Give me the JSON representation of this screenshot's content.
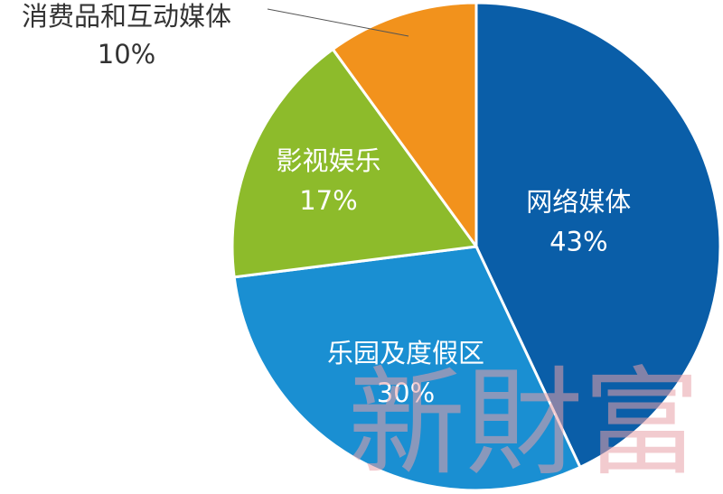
{
  "chart_data": {
    "type": "pie",
    "categories": [
      "网络媒体",
      "乐园及度假区",
      "影视娱乐",
      "消费品和互动媒体"
    ],
    "values": [
      43,
      30,
      17,
      10
    ],
    "value_labels": [
      "43%",
      "30%",
      "17%",
      "10%"
    ],
    "colors": [
      "#0a5ea8",
      "#1a8fd2",
      "#8dbb2b",
      "#f2921c"
    ],
    "watermark": "新財富"
  }
}
